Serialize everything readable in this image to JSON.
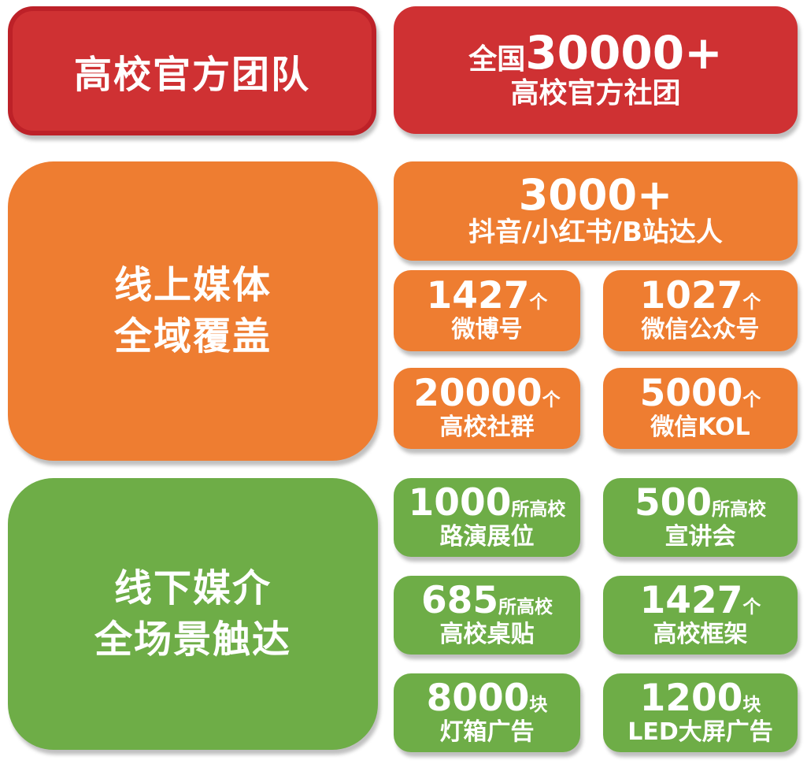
{
  "colors": {
    "red_fill": "#cf3133",
    "red_border": "#bd2128",
    "orange_fill": "#ee7d31",
    "green_fill": "#6ead47",
    "text": "#ffffff",
    "background": "#ffffff"
  },
  "sections": {
    "official": {
      "heading": "高校官方团队",
      "stat": {
        "prefix": "全国",
        "number": "30000+",
        "label": "高校官方社团"
      }
    },
    "online": {
      "heading_line1": "线上媒体",
      "heading_line2": "全域覆盖",
      "feature": {
        "number": "3000+",
        "label": "抖音/小红书/B站达人"
      },
      "stats": [
        {
          "number": "1427",
          "unit": "个",
          "label": "微博号"
        },
        {
          "number": "1027",
          "unit": "个",
          "label": "微信公众号"
        },
        {
          "number": "20000",
          "unit": "个",
          "label": "高校社群"
        },
        {
          "number": "5000",
          "unit": "个",
          "label": "微信KOL"
        }
      ]
    },
    "offline": {
      "heading_line1": "线下媒介",
      "heading_line2": "全场景触达",
      "stats": [
        {
          "number": "1000",
          "unit": "所高校",
          "label": "路演展位"
        },
        {
          "number": "500",
          "unit": "所高校",
          "label": "宣讲会"
        },
        {
          "number": "685",
          "unit": "所高校",
          "label": "高校桌贴"
        },
        {
          "number": "1427",
          "unit": "个",
          "label": "高校框架"
        },
        {
          "number": "8000",
          "unit": "块",
          "label": "灯箱广告"
        },
        {
          "number": "1200",
          "unit": "块",
          "label": "LED大屏广告"
        }
      ]
    }
  }
}
